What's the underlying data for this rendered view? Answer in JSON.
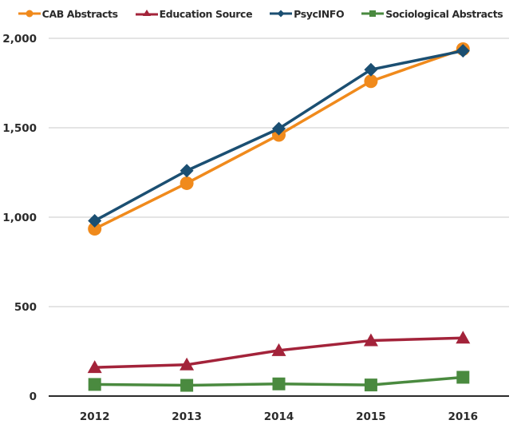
{
  "chart_data": {
    "type": "line",
    "title": "",
    "xlabel": "",
    "ylabel": "",
    "categories": [
      "2012",
      "2013",
      "2014",
      "2015",
      "2016"
    ],
    "ylim": [
      0,
      2000
    ],
    "yticks": [
      0,
      500,
      1000,
      1500,
      2000
    ],
    "ytick_labels": [
      "0",
      "500",
      "1,000",
      "1,500",
      "2,000"
    ],
    "grid": true,
    "legend_position": "top-center",
    "series": [
      {
        "name": "CAB Abstracts",
        "color": "#f08a1c",
        "marker": "circle",
        "values": [
          935,
          1190,
          1460,
          1760,
          1940
        ]
      },
      {
        "name": "Education Source",
        "color": "#a3233a",
        "marker": "triangle",
        "values": [
          160,
          175,
          255,
          310,
          325
        ]
      },
      {
        "name": "PsycINFO",
        "color": "#1b4f72",
        "marker": "diamond",
        "values": [
          980,
          1260,
          1495,
          1825,
          1930
        ]
      },
      {
        "name": "Sociological Abstracts",
        "color": "#4a8a3f",
        "marker": "square",
        "values": [
          65,
          60,
          68,
          62,
          105
        ]
      }
    ]
  }
}
